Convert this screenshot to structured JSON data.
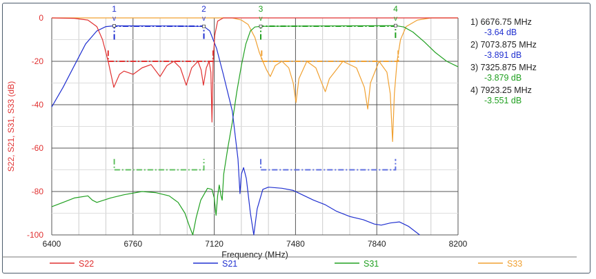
{
  "chart_data": {
    "type": "line",
    "xlabel": "Frequency (MHz)",
    "ylabel": "S22, S21, S31, S33 (dB)",
    "xlim": [
      6400,
      8200
    ],
    "ylim": [
      -100,
      0
    ],
    "xticks": [
      6400,
      6760,
      7120,
      7480,
      7840,
      8200
    ],
    "yticks": [
      0,
      -20,
      -40,
      -60,
      -80,
      -100
    ],
    "grid": true,
    "legend": "bottom",
    "series": [
      {
        "name": "S22",
        "color": "#e03030",
        "points": [
          [
            6400,
            0
          ],
          [
            6500,
            -0.2
          ],
          [
            6560,
            -1
          ],
          [
            6600,
            -4
          ],
          [
            6625,
            -10
          ],
          [
            6650,
            -20
          ],
          [
            6675,
            -32
          ],
          [
            6700,
            -26
          ],
          [
            6720,
            -24.5
          ],
          [
            6761,
            -26
          ],
          [
            6800,
            -23
          ],
          [
            6840,
            -21.5
          ],
          [
            6880,
            -27
          ],
          [
            6910,
            -22
          ],
          [
            6941,
            -20
          ],
          [
            6970,
            -23
          ],
          [
            6996,
            -31
          ],
          [
            7020,
            -23
          ],
          [
            7048,
            -20
          ],
          [
            7062,
            -24
          ],
          [
            7072,
            -31
          ],
          [
            7085,
            -23
          ],
          [
            7097,
            -20
          ],
          [
            7105,
            -25
          ],
          [
            7110,
            -48
          ],
          [
            7115,
            -20
          ],
          [
            7122,
            -8
          ],
          [
            7135,
            -1.5
          ],
          [
            7160,
            0
          ],
          [
            8200,
            0
          ]
        ]
      },
      {
        "name": "S21",
        "color": "#2030d0",
        "points": [
          [
            6400,
            -41
          ],
          [
            6450,
            -32
          ],
          [
            6500,
            -22
          ],
          [
            6550,
            -12
          ],
          [
            6600,
            -6
          ],
          [
            6640,
            -4
          ],
          [
            6677,
            -3.64
          ],
          [
            6900,
            -3.7
          ],
          [
            7074,
            -3.89
          ],
          [
            7100,
            -6
          ],
          [
            7130,
            -14
          ],
          [
            7160,
            -26
          ],
          [
            7200,
            -43
          ],
          [
            7225,
            -65
          ],
          [
            7234,
            -81
          ],
          [
            7240,
            -72
          ],
          [
            7250,
            -69
          ],
          [
            7262,
            -74
          ],
          [
            7280,
            -90
          ],
          [
            7295,
            -100
          ],
          [
            7310,
            -88
          ],
          [
            7335,
            -79
          ],
          [
            7360,
            -78
          ],
          [
            7420,
            -78.5
          ],
          [
            7470,
            -79.5
          ],
          [
            7520,
            -82
          ],
          [
            7560,
            -84
          ],
          [
            7610,
            -86
          ],
          [
            7660,
            -89
          ],
          [
            7720,
            -91.5
          ],
          [
            7780,
            -93
          ],
          [
            7830,
            -95
          ],
          [
            7860,
            -95.5
          ],
          [
            7900,
            -94.5
          ],
          [
            7940,
            -94
          ],
          [
            7980,
            -96
          ],
          [
            8030,
            -100
          ]
        ]
      },
      {
        "name": "S31",
        "color": "#20a020",
        "points": [
          [
            6400,
            -87
          ],
          [
            6450,
            -85
          ],
          [
            6500,
            -83
          ],
          [
            6560,
            -82
          ],
          [
            6580,
            -84
          ],
          [
            6600,
            -85
          ],
          [
            6660,
            -83
          ],
          [
            6720,
            -81.5
          ],
          [
            6800,
            -80
          ],
          [
            6860,
            -80.5
          ],
          [
            6920,
            -82
          ],
          [
            6960,
            -85
          ],
          [
            6990,
            -90
          ],
          [
            7010,
            -96
          ],
          [
            7025,
            -100
          ],
          [
            7040,
            -92
          ],
          [
            7060,
            -84
          ],
          [
            7090,
            -78.5
          ],
          [
            7110,
            -79
          ],
          [
            7120,
            -83
          ],
          [
            7128,
            -91
          ],
          [
            7135,
            -82
          ],
          [
            7142,
            -77
          ],
          [
            7150,
            -82
          ],
          [
            7155,
            -84
          ],
          [
            7162,
            -72
          ],
          [
            7180,
            -60
          ],
          [
            7200,
            -48
          ],
          [
            7220,
            -34
          ],
          [
            7240,
            -22
          ],
          [
            7260,
            -12
          ],
          [
            7280,
            -6
          ],
          [
            7300,
            -4.2
          ],
          [
            7326,
            -3.88
          ],
          [
            7600,
            -3.7
          ],
          [
            7923,
            -3.55
          ],
          [
            7960,
            -4.2
          ],
          [
            8000,
            -6.5
          ],
          [
            8050,
            -11
          ],
          [
            8100,
            -16
          ],
          [
            8150,
            -20
          ],
          [
            8200,
            -22.5
          ]
        ]
      },
      {
        "name": "S33",
        "color": "#f0a030",
        "points": [
          [
            6400,
            0
          ],
          [
            7200,
            0
          ],
          [
            7240,
            -1
          ],
          [
            7270,
            -3
          ],
          [
            7300,
            -9
          ],
          [
            7320,
            -16
          ],
          [
            7335,
            -20
          ],
          [
            7352,
            -24
          ],
          [
            7368,
            -27
          ],
          [
            7390,
            -22
          ],
          [
            7420,
            -20
          ],
          [
            7450,
            -23
          ],
          [
            7470,
            -30
          ],
          [
            7482,
            -39
          ],
          [
            7495,
            -28
          ],
          [
            7530,
            -20
          ],
          [
            7570,
            -23
          ],
          [
            7600,
            -31
          ],
          [
            7612,
            -34
          ],
          [
            7630,
            -28
          ],
          [
            7690,
            -20
          ],
          [
            7750,
            -23
          ],
          [
            7785,
            -32
          ],
          [
            7800,
            -42
          ],
          [
            7812,
            -30
          ],
          [
            7850,
            -20
          ],
          [
            7885,
            -25
          ],
          [
            7900,
            -35
          ],
          [
            7910,
            -57
          ],
          [
            7918,
            -35
          ],
          [
            7930,
            -20
          ],
          [
            7945,
            -10
          ],
          [
            7970,
            -4
          ],
          [
            8020,
            -1
          ],
          [
            8080,
            0
          ],
          [
            8200,
            0
          ]
        ]
      }
    ],
    "masks": [
      {
        "color": "#e03030",
        "y": -20,
        "x": [
          6650,
          7115
        ],
        "tick": -15
      },
      {
        "color": "#f0a030",
        "y": -20,
        "x": [
          7330,
          7935
        ],
        "tick": -15
      },
      {
        "color": "#2030d0",
        "y": -3.8,
        "x": [
          6677,
          7074
        ],
        "tick": -10
      },
      {
        "color": "#20a020",
        "y": -3.8,
        "x": [
          7326,
          7923
        ],
        "tick": -10
      },
      {
        "color": "#60c060",
        "y": -70,
        "x": [
          6677,
          7074
        ],
        "tick": -65
      },
      {
        "color": "#6070e0",
        "y": -70,
        "x": [
          7326,
          7923
        ],
        "tick": -65
      }
    ],
    "markers": [
      {
        "id": "1",
        "freq": 6676.75,
        "value": -3.64,
        "color": "#2030d0",
        "label": "1) 6676.75 MHz",
        "value_label": "-3.64 dB"
      },
      {
        "id": "2",
        "freq": 7073.875,
        "value": -3.891,
        "color": "#2030d0",
        "label": "2) 7073.875 MHz",
        "value_label": "-3.891 dB"
      },
      {
        "id": "3",
        "freq": 7325.875,
        "value": -3.879,
        "color": "#20a020",
        "label": "3) 7325.875 MHz",
        "value_label": "-3.879 dB"
      },
      {
        "id": "4",
        "freq": 7923.25,
        "value": -3.551,
        "color": "#20a020",
        "label": "4) 7923.25 MHz",
        "value_label": "-3.551 dB"
      }
    ]
  }
}
